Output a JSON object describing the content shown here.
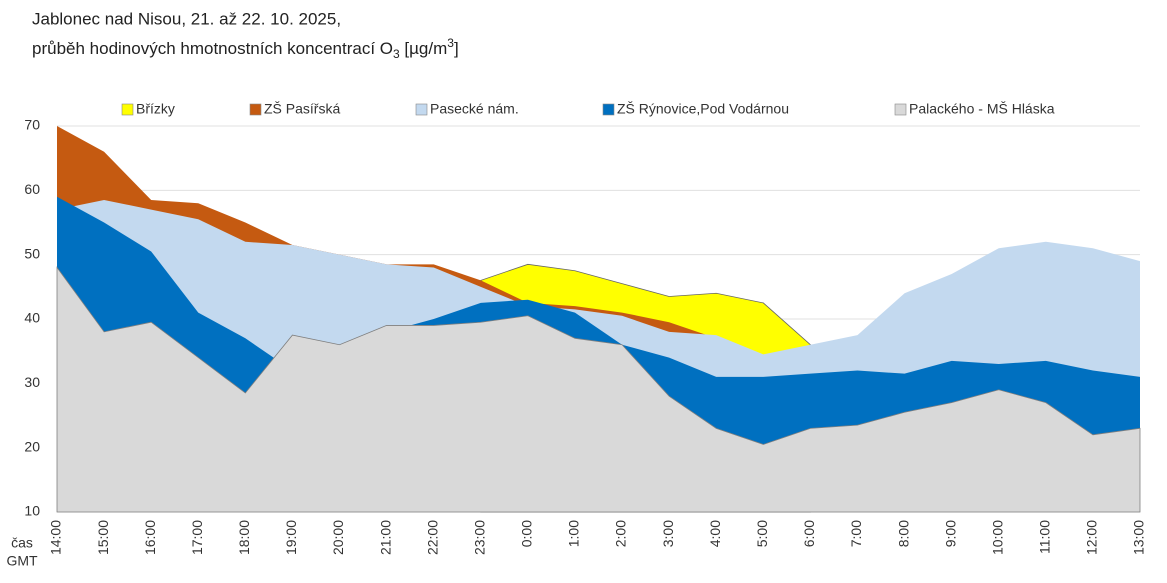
{
  "chart_data": {
    "type": "area",
    "title": "Jablonec nad Nisou, 21. až 22. 10. 2025,",
    "subtitle_parts": [
      "průběh hodinových hmotnostních koncentrací O",
      "3",
      " [µg/m",
      "3",
      "]"
    ],
    "x_label": [
      "čas",
      "GMT"
    ],
    "categories": [
      "14:00",
      "15:00",
      "16:00",
      "17:00",
      "18:00",
      "19:00",
      "20:00",
      "21:00",
      "22:00",
      "23:00",
      "0:00",
      "1:00",
      "2:00",
      "3:00",
      "4:00",
      "5:00",
      "6:00",
      "7:00",
      "8:00",
      "9:00",
      "10:00",
      "11:00",
      "12:00",
      "13:00"
    ],
    "ylim": [
      10,
      70
    ],
    "yticks": [
      10,
      20,
      30,
      40,
      50,
      60,
      70
    ],
    "grid": true,
    "legend": "top",
    "series": [
      {
        "name": "Břízky",
        "color": "#ffff00",
        "values": [
          null,
          null,
          null,
          null,
          null,
          null,
          null,
          null,
          null,
          46,
          48.5,
          47.5,
          45.5,
          43.5,
          44,
          42.5,
          36,
          null,
          null,
          null,
          null,
          null,
          null,
          null
        ]
      },
      {
        "name": "ZŠ Pasířská",
        "color": "#c55a11",
        "values": [
          70,
          66,
          58.5,
          58,
          55,
          51.5,
          50,
          48.5,
          48.5,
          46,
          42.5,
          42,
          41,
          39.5,
          37,
          null,
          null,
          null,
          null,
          null,
          null,
          null,
          null,
          null
        ]
      },
      {
        "name": "Pasecké nám.",
        "color": "#c3d9ef",
        "values": [
          57,
          58.5,
          57,
          55.5,
          52,
          51.5,
          50,
          48.5,
          48,
          45,
          42,
          41.5,
          40.5,
          38,
          37.5,
          34.5,
          36,
          37.5,
          44,
          47,
          51,
          52,
          51,
          49
        ]
      },
      {
        "name": "ZŠ Rýnovice,Pod Vodárnou",
        "color": "#0070c0",
        "values": [
          59,
          55,
          50.5,
          41,
          37,
          32,
          35,
          38,
          40,
          42.5,
          43,
          41,
          36,
          34,
          31,
          31,
          31.5,
          32,
          31.5,
          33.5,
          33,
          33.5,
          32,
          31
        ]
      },
      {
        "name": "Palackého - MŠ Hláska",
        "color": "#d9d9d9",
        "values": [
          48,
          38,
          39.5,
          34,
          28.5,
          37.5,
          36,
          39,
          39,
          39.5,
          40.5,
          37,
          36,
          28,
          23,
          20.5,
          23,
          23.5,
          25.5,
          27,
          29,
          27,
          22,
          23
        ]
      }
    ]
  }
}
